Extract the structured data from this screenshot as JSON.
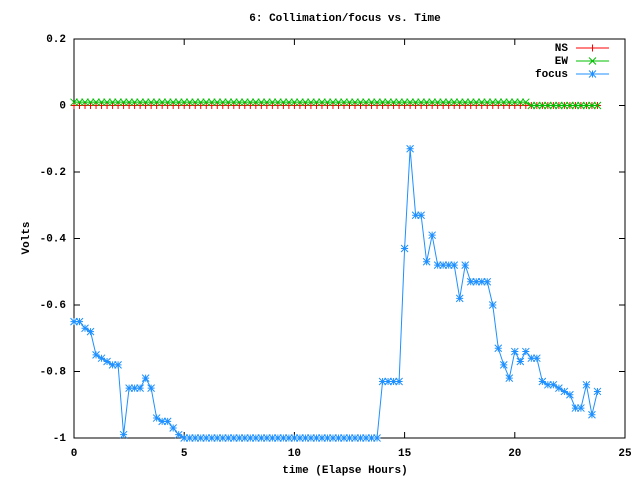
{
  "chart_data": {
    "type": "line",
    "title": "6: Collimation/focus vs. Time",
    "x_label": "time (Elapse Hours)",
    "y_label": "Volts",
    "x": [
      0,
      0.25,
      0.5,
      0.75,
      1,
      1.25,
      1.5,
      1.75,
      2,
      2.25,
      2.5,
      2.75,
      3,
      3.25,
      3.5,
      3.75,
      4,
      4.25,
      4.5,
      4.75,
      5,
      5.25,
      5.5,
      5.75,
      6,
      6.25,
      6.5,
      6.75,
      7,
      7.25,
      7.5,
      7.75,
      8,
      8.25,
      8.5,
      8.75,
      9,
      9.25,
      9.5,
      9.75,
      10,
      10.25,
      10.5,
      10.75,
      11,
      11.25,
      11.5,
      11.75,
      12,
      12.25,
      12.5,
      12.75,
      13,
      13.25,
      13.5,
      13.75,
      14,
      14.25,
      14.5,
      14.75,
      15,
      15.25,
      15.5,
      15.75,
      16,
      16.25,
      16.5,
      16.75,
      17,
      17.25,
      17.5,
      17.75,
      18,
      18.25,
      18.5,
      18.75,
      19,
      19.25,
      19.5,
      19.75,
      20,
      20.25,
      20.5,
      20.75,
      21,
      21.25,
      21.5,
      21.75,
      22,
      22.25,
      22.5,
      22.75,
      23,
      23.25,
      23.5,
      23.75
    ],
    "series": [
      {
        "name": "NS",
        "color": "#ff0000",
        "marker": "plus",
        "values": [
          0,
          0,
          0,
          0,
          0,
          0,
          0,
          0,
          0,
          0,
          0,
          0,
          0,
          0,
          0,
          0,
          0,
          0,
          0,
          0,
          0,
          0,
          0,
          0,
          0,
          0,
          0,
          0,
          0,
          0,
          0,
          0,
          0,
          0,
          0,
          0,
          0,
          0,
          0,
          0,
          0,
          0,
          0,
          0,
          0,
          0,
          0,
          0,
          0,
          0,
          0,
          0,
          0,
          0,
          0,
          0,
          0,
          0,
          0,
          0,
          0,
          0,
          0,
          0,
          0,
          0,
          0,
          0,
          0,
          0,
          0,
          0,
          0,
          0,
          0,
          0,
          0,
          0,
          0,
          0,
          0,
          0,
          0,
          0,
          0,
          0,
          0,
          0,
          0,
          0,
          0,
          0,
          0,
          0,
          0,
          0
        ]
      },
      {
        "name": "EW",
        "color": "#00c000",
        "marker": "cross",
        "values": [
          0.01,
          0.01,
          0.01,
          0.01,
          0.01,
          0.01,
          0.01,
          0.01,
          0.01,
          0.01,
          0.01,
          0.01,
          0.01,
          0.01,
          0.01,
          0.01,
          0.01,
          0.01,
          0.01,
          0.01,
          0.01,
          0.01,
          0.01,
          0.01,
          0.01,
          0.01,
          0.01,
          0.01,
          0.01,
          0.01,
          0.01,
          0.01,
          0.01,
          0.01,
          0.01,
          0.01,
          0.01,
          0.01,
          0.01,
          0.01,
          0.01,
          0.01,
          0.01,
          0.01,
          0.01,
          0.01,
          0.01,
          0.01,
          0.01,
          0.01,
          0.01,
          0.01,
          0.01,
          0.01,
          0.01,
          0.01,
          0.01,
          0.01,
          0.01,
          0.01,
          0.01,
          0.01,
          0.01,
          0.01,
          0.01,
          0.01,
          0.01,
          0.01,
          0.01,
          0.01,
          0.01,
          0.01,
          0.01,
          0.01,
          0.01,
          0.01,
          0.01,
          0.01,
          0.01,
          0.01,
          0.01,
          0.01,
          0.01,
          0,
          0,
          0,
          0,
          0,
          0,
          0,
          0,
          0,
          0,
          0,
          0,
          0
        ]
      },
      {
        "name": "focus",
        "color": "#1e90ff",
        "marker": "star",
        "values": [
          -0.65,
          -0.65,
          -0.67,
          -0.68,
          -0.75,
          -0.76,
          -0.77,
          -0.78,
          -0.78,
          -0.99,
          -0.85,
          -0.85,
          -0.85,
          -0.82,
          -0.85,
          -0.94,
          -0.95,
          -0.95,
          -0.97,
          -0.99,
          -1,
          -1,
          -1,
          -1,
          -1,
          -1,
          -1,
          -1,
          -1,
          -1,
          -1,
          -1,
          -1,
          -1,
          -1,
          -1,
          -1,
          -1,
          -1,
          -1,
          -1,
          -1,
          -1,
          -1,
          -1,
          -1,
          -1,
          -1,
          -1,
          -1,
          -1,
          -1,
          -1,
          -1,
          -1,
          -1,
          -0.83,
          -0.83,
          -0.83,
          -0.83,
          -0.43,
          -0.13,
          -0.33,
          -0.33,
          -0.47,
          -0.39,
          -0.48,
          -0.48,
          -0.48,
          -0.48,
          -0.58,
          -0.48,
          -0.53,
          -0.53,
          -0.53,
          -0.53,
          -0.6,
          -0.73,
          -0.78,
          -0.82,
          -0.74,
          -0.77,
          -0.74,
          -0.76,
          -0.76,
          -0.83,
          -0.84,
          -0.84,
          -0.85,
          -0.86,
          -0.87,
          -0.91,
          -0.91,
          -0.84,
          -0.93,
          -0.86
        ]
      }
    ],
    "xlim": [
      0,
      25
    ],
    "xticks": [
      0,
      5,
      10,
      15,
      20,
      25
    ],
    "ylim": [
      -1,
      0.2
    ],
    "yticks": [
      0.2,
      0,
      -0.2,
      -0.4,
      -0.6,
      -0.8,
      -1
    ],
    "grid": false,
    "legend": "upper right"
  }
}
